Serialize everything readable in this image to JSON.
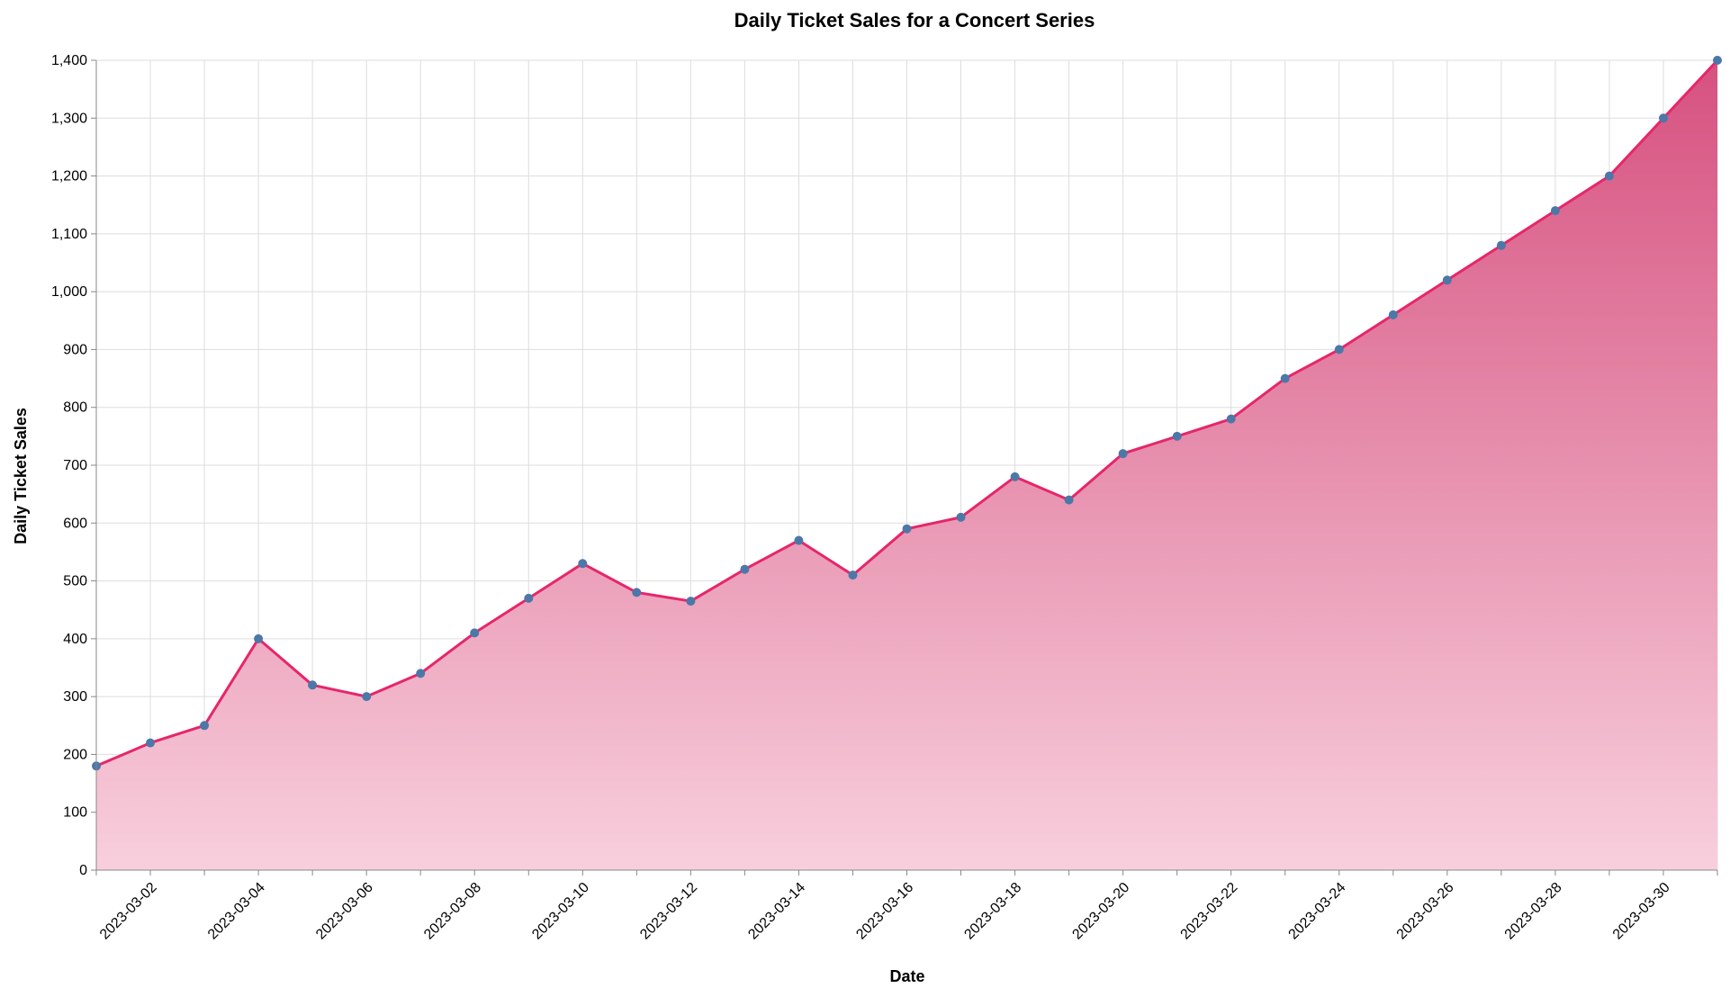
{
  "chart_data": {
    "type": "area",
    "title": "Daily Ticket Sales for a Concert Series",
    "xlabel": "Date",
    "ylabel": "Daily Ticket Sales",
    "ylim": [
      0,
      1400
    ],
    "yticks": [
      0,
      100,
      200,
      300,
      400,
      500,
      600,
      700,
      800,
      900,
      1000,
      1100,
      1200,
      1300,
      1400
    ],
    "ytick_labels": [
      "0",
      "100",
      "200",
      "300",
      "400",
      "500",
      "600",
      "700",
      "800",
      "900",
      "1,000",
      "1,100",
      "1,200",
      "1,300",
      "1,400"
    ],
    "xlim": [
      "2023-03-01",
      "2023-03-31"
    ],
    "xtick_labels": [
      "2023-03-02",
      "2023-03-04",
      "2023-03-06",
      "2023-03-08",
      "2023-03-10",
      "2023-03-12",
      "2023-03-14",
      "2023-03-16",
      "2023-03-18",
      "2023-03-20",
      "2023-03-22",
      "2023-03-24",
      "2023-03-26",
      "2023-03-28",
      "2023-03-30"
    ],
    "grid": true,
    "x": [
      "2023-03-01",
      "2023-03-02",
      "2023-03-03",
      "2023-03-04",
      "2023-03-05",
      "2023-03-06",
      "2023-03-07",
      "2023-03-08",
      "2023-03-09",
      "2023-03-10",
      "2023-03-11",
      "2023-03-12",
      "2023-03-13",
      "2023-03-14",
      "2023-03-15",
      "2023-03-16",
      "2023-03-17",
      "2023-03-18",
      "2023-03-19",
      "2023-03-20",
      "2023-03-21",
      "2023-03-22",
      "2023-03-23",
      "2023-03-24",
      "2023-03-25",
      "2023-03-26",
      "2023-03-27",
      "2023-03-28",
      "2023-03-29",
      "2023-03-30",
      "2023-03-31"
    ],
    "values": [
      180,
      220,
      250,
      400,
      320,
      300,
      340,
      410,
      470,
      530,
      480,
      465,
      520,
      570,
      510,
      590,
      610,
      680,
      640,
      720,
      750,
      780,
      850,
      900,
      960,
      1020,
      1080,
      1140,
      1200,
      1300,
      1400
    ],
    "colors": {
      "line": "#e6266b",
      "point": "#4c78a8",
      "area_top": "#d6517f",
      "area_bottom": "#f8cfdd"
    }
  }
}
